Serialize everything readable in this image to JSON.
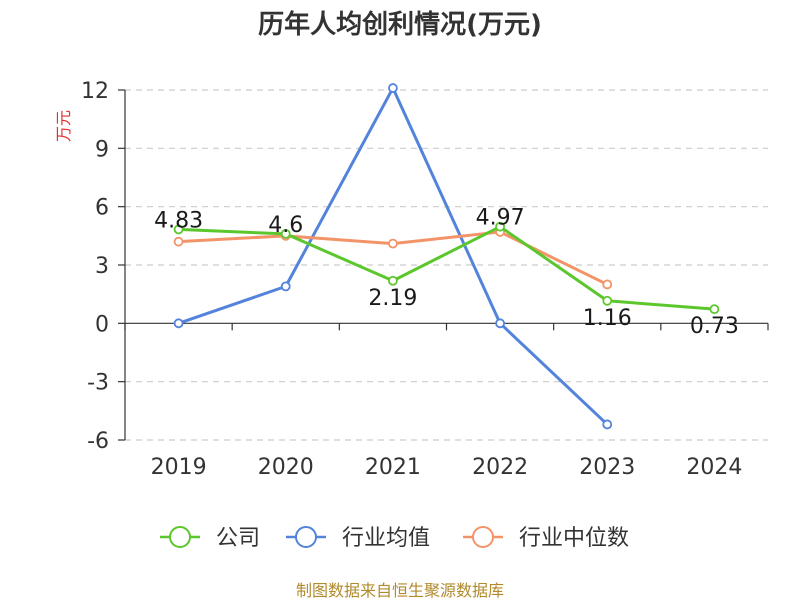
{
  "title": "历年人均创利情况(万元)",
  "footer": "制图数据来自恒生聚源数据库",
  "chart_data": {
    "type": "line",
    "title": "历年人均创利情况(万元)",
    "ylabel": "万元",
    "xlabel": "",
    "categories": [
      "2019",
      "2020",
      "2021",
      "2022",
      "2023",
      "2024"
    ],
    "ylim": [
      -6,
      12
    ],
    "yticks": [
      -6,
      -3,
      0,
      3,
      6,
      9,
      12
    ],
    "grid": true,
    "legend_position": "bottom",
    "series": [
      {
        "name": "公司",
        "color": "#5cc72d",
        "values": [
          4.83,
          4.6,
          2.19,
          4.97,
          1.16,
          0.73
        ],
        "labels": [
          "4.83",
          "4.6",
          "2.19",
          "4.97",
          "1.16",
          "0.73"
        ]
      },
      {
        "name": "行业均值",
        "color": "#5383db",
        "values": [
          0.0,
          1.9,
          12.1,
          0.0,
          -5.2,
          null
        ]
      },
      {
        "name": "行业中位数",
        "color": "#f39468",
        "values": [
          4.2,
          4.5,
          4.1,
          4.7,
          2.0,
          null
        ]
      }
    ]
  }
}
